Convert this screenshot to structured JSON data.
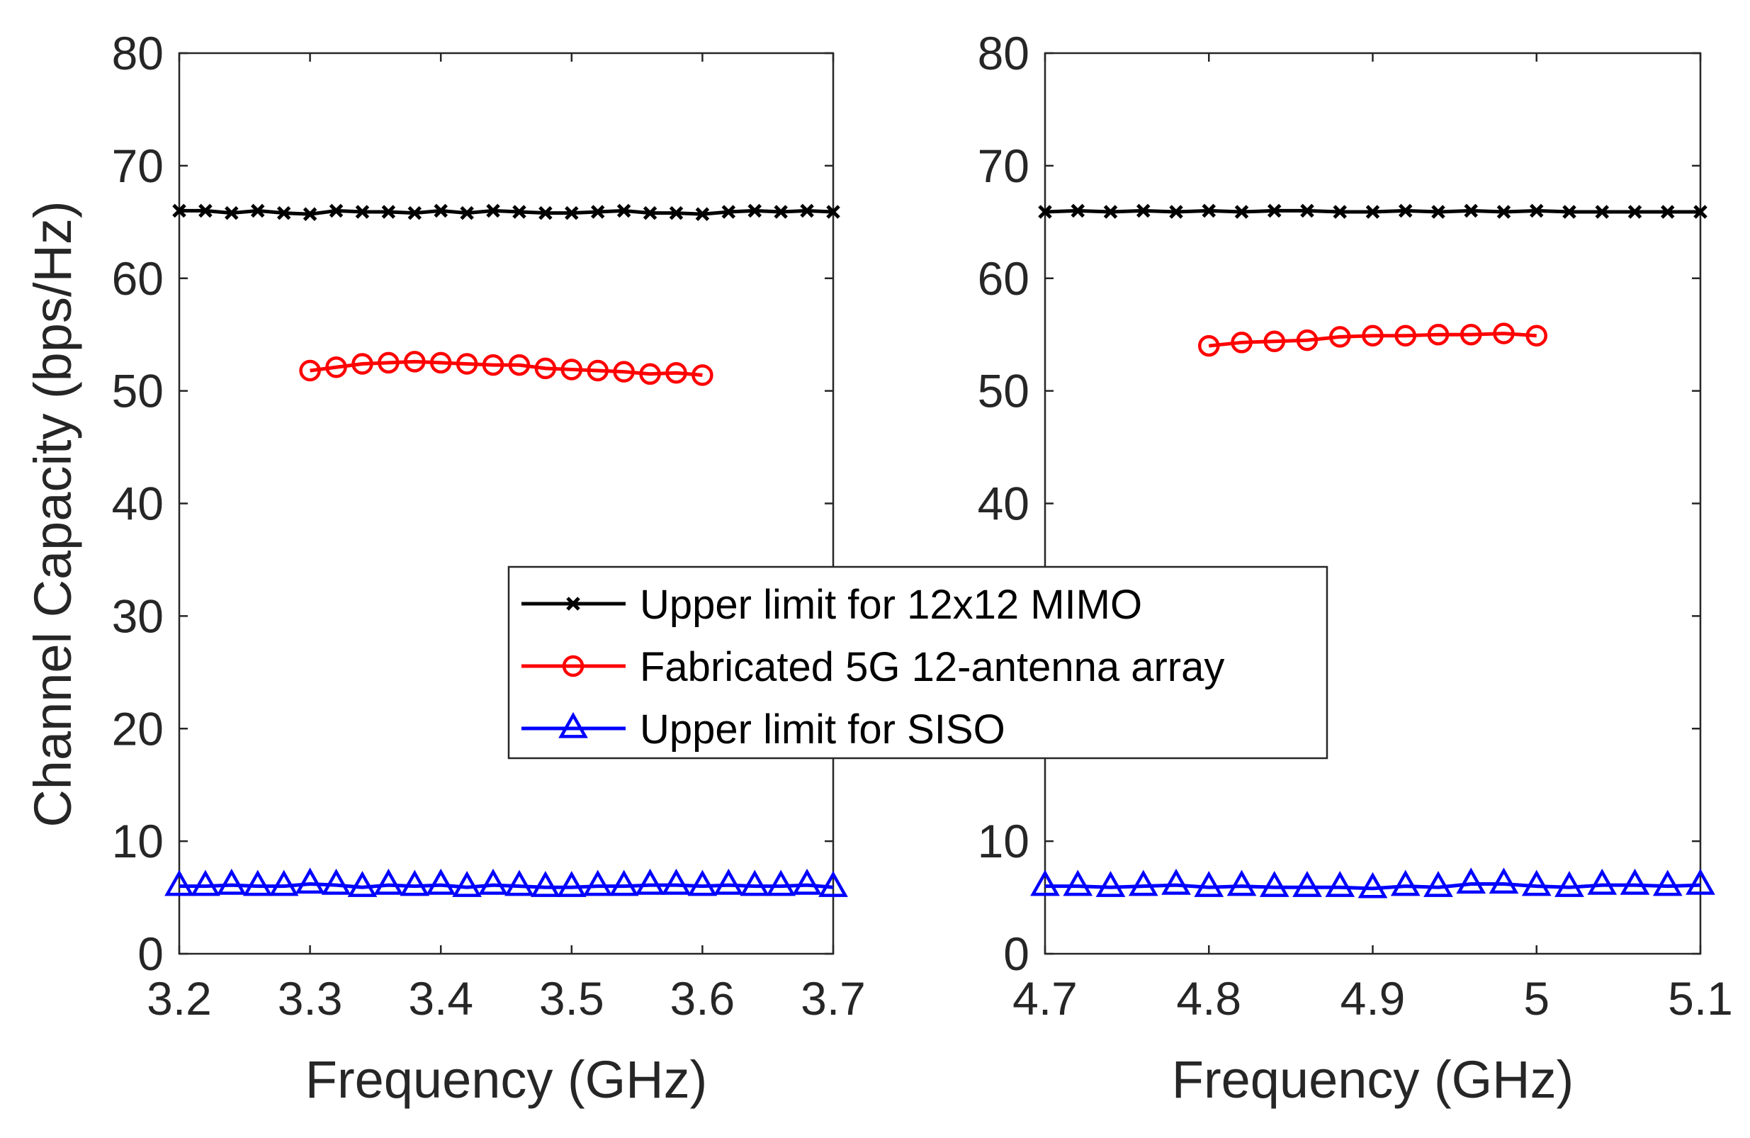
{
  "chart_data": [
    {
      "type": "line",
      "xlabel": "Frequency (GHz)",
      "ylabel": "Channel Capacity (bps/Hz)",
      "xlim": [
        3.2,
        3.7
      ],
      "ylim": [
        0,
        80
      ],
      "xticks": [
        "3.2",
        "3.3",
        "3.4",
        "3.5",
        "3.6",
        "3.7"
      ],
      "yticks": [
        "0",
        "10",
        "20",
        "30",
        "40",
        "50",
        "60",
        "70",
        "80"
      ],
      "grid": false,
      "series": [
        {
          "name": "Upper limit for 12x12 MIMO",
          "color": "#000000",
          "marker": "x",
          "x": [
            3.2,
            3.22,
            3.24,
            3.26,
            3.28,
            3.3,
            3.32,
            3.34,
            3.36,
            3.38,
            3.4,
            3.42,
            3.44,
            3.46,
            3.48,
            3.5,
            3.52,
            3.54,
            3.56,
            3.58,
            3.6,
            3.62,
            3.64,
            3.66,
            3.68,
            3.7
          ],
          "y": [
            66.0,
            66.0,
            65.8,
            66.0,
            65.8,
            65.7,
            66.0,
            65.9,
            65.9,
            65.8,
            66.0,
            65.8,
            66.0,
            65.9,
            65.8,
            65.8,
            65.9,
            66.0,
            65.8,
            65.8,
            65.7,
            65.9,
            66.0,
            65.9,
            66.0,
            65.9
          ]
        },
        {
          "name": "Fabricated 5G 12-antenna array",
          "color": "#ff0000",
          "marker": "o",
          "x": [
            3.3,
            3.32,
            3.34,
            3.36,
            3.38,
            3.4,
            3.42,
            3.44,
            3.46,
            3.48,
            3.5,
            3.52,
            3.54,
            3.56,
            3.58,
            3.6
          ],
          "y": [
            51.8,
            52.1,
            52.4,
            52.5,
            52.6,
            52.5,
            52.4,
            52.3,
            52.3,
            52.0,
            51.9,
            51.8,
            51.7,
            51.5,
            51.6,
            51.4
          ]
        },
        {
          "name": "Upper limit for SISO",
          "color": "#0000ff",
          "marker": "triangle",
          "x": [
            3.2,
            3.22,
            3.24,
            3.26,
            3.28,
            3.3,
            3.32,
            3.34,
            3.36,
            3.38,
            3.4,
            3.42,
            3.44,
            3.46,
            3.48,
            3.5,
            3.52,
            3.54,
            3.56,
            3.58,
            3.6,
            3.62,
            3.64,
            3.66,
            3.68,
            3.7
          ],
          "y": [
            6.0,
            6.0,
            6.1,
            6.0,
            6.0,
            6.2,
            6.1,
            5.9,
            6.1,
            6.0,
            6.1,
            5.9,
            6.1,
            6.0,
            5.9,
            5.9,
            6.0,
            6.0,
            6.1,
            6.1,
            6.0,
            6.1,
            6.0,
            6.0,
            6.1,
            5.9
          ]
        }
      ]
    },
    {
      "type": "line",
      "xlabel": "Frequency (GHz)",
      "ylabel": "",
      "xlim": [
        4.7,
        5.1
      ],
      "ylim": [
        0,
        80
      ],
      "xticks": [
        "4.7",
        "4.8",
        "4.9",
        "5",
        "5.1"
      ],
      "yticks": [
        "0",
        "10",
        "20",
        "30",
        "40",
        "50",
        "60",
        "70",
        "80"
      ],
      "grid": false,
      "series": [
        {
          "name": "Upper limit for 12x12 MIMO",
          "color": "#000000",
          "marker": "x",
          "x": [
            4.7,
            4.72,
            4.74,
            4.76,
            4.78,
            4.8,
            4.82,
            4.84,
            4.86,
            4.88,
            4.9,
            4.92,
            4.94,
            4.96,
            4.98,
            5.0,
            5.02,
            5.04,
            5.06,
            5.08,
            5.1
          ],
          "y": [
            65.9,
            66.0,
            65.9,
            66.0,
            65.9,
            66.0,
            65.9,
            66.0,
            66.0,
            65.9,
            65.9,
            66.0,
            65.9,
            66.0,
            65.9,
            66.0,
            65.9,
            65.9,
            65.9,
            65.9,
            65.9
          ]
        },
        {
          "name": "Fabricated 5G 12-antenna array",
          "color": "#ff0000",
          "marker": "o",
          "x": [
            4.8,
            4.82,
            4.84,
            4.86,
            4.88,
            4.9,
            4.92,
            4.94,
            4.96,
            4.98,
            5.0
          ],
          "y": [
            54.0,
            54.3,
            54.4,
            54.5,
            54.8,
            54.9,
            54.9,
            55.0,
            55.0,
            55.1,
            54.9
          ]
        },
        {
          "name": "Upper limit for SISO",
          "color": "#0000ff",
          "marker": "triangle",
          "x": [
            4.7,
            4.72,
            4.74,
            4.76,
            4.78,
            4.8,
            4.82,
            4.84,
            4.86,
            4.88,
            4.9,
            4.92,
            4.94,
            4.96,
            4.98,
            5.0,
            5.02,
            5.04,
            5.06,
            5.08,
            5.1
          ],
          "y": [
            6.0,
            6.0,
            5.9,
            6.0,
            6.1,
            5.9,
            6.0,
            5.9,
            5.9,
            5.9,
            5.8,
            6.0,
            5.9,
            6.2,
            6.2,
            6.0,
            5.9,
            6.1,
            6.1,
            6.0,
            6.1
          ]
        }
      ]
    }
  ],
  "legend": {
    "placement": "center",
    "items": [
      {
        "label": "Upper limit for 12x12 MIMO",
        "color": "#000000",
        "marker": "x"
      },
      {
        "label": "Fabricated 5G 12-antenna array",
        "color": "#ff0000",
        "marker": "o"
      },
      {
        "label": "Upper limit for SISO",
        "color": "#0000ff",
        "marker": "triangle"
      }
    ]
  }
}
